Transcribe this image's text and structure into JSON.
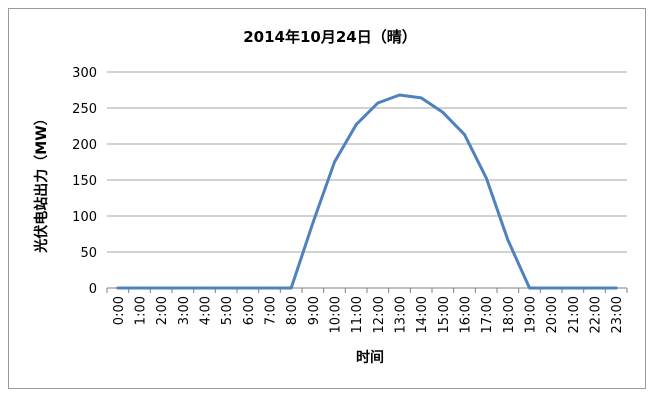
{
  "chart_data": {
    "type": "line",
    "title": "2014年10月24日（晴）",
    "xlabel": "时间",
    "ylabel": "光伏电站出力（MW）",
    "ylim": [
      0,
      300
    ],
    "yticks": [
      0,
      50,
      100,
      150,
      200,
      250,
      300
    ],
    "grid": true,
    "legend": "none",
    "line_color": "#4f81bd",
    "categories": [
      "0:00",
      "1:00",
      "2:00",
      "3:00",
      "4:00",
      "5:00",
      "6:00",
      "7:00",
      "8:00",
      "9:00",
      "10:00",
      "11:00",
      "12:00",
      "13:00",
      "14:00",
      "15:00",
      "16:00",
      "17:00",
      "18:00",
      "19:00",
      "20:00",
      "21:00",
      "22:00",
      "23:00"
    ],
    "series": [
      {
        "values": [
          0,
          0,
          0,
          0,
          0,
          0,
          0,
          0,
          0,
          90,
          175,
          227,
          257,
          268,
          264,
          244,
          213,
          153,
          67,
          0,
          0,
          0,
          0,
          0
        ]
      }
    ]
  }
}
